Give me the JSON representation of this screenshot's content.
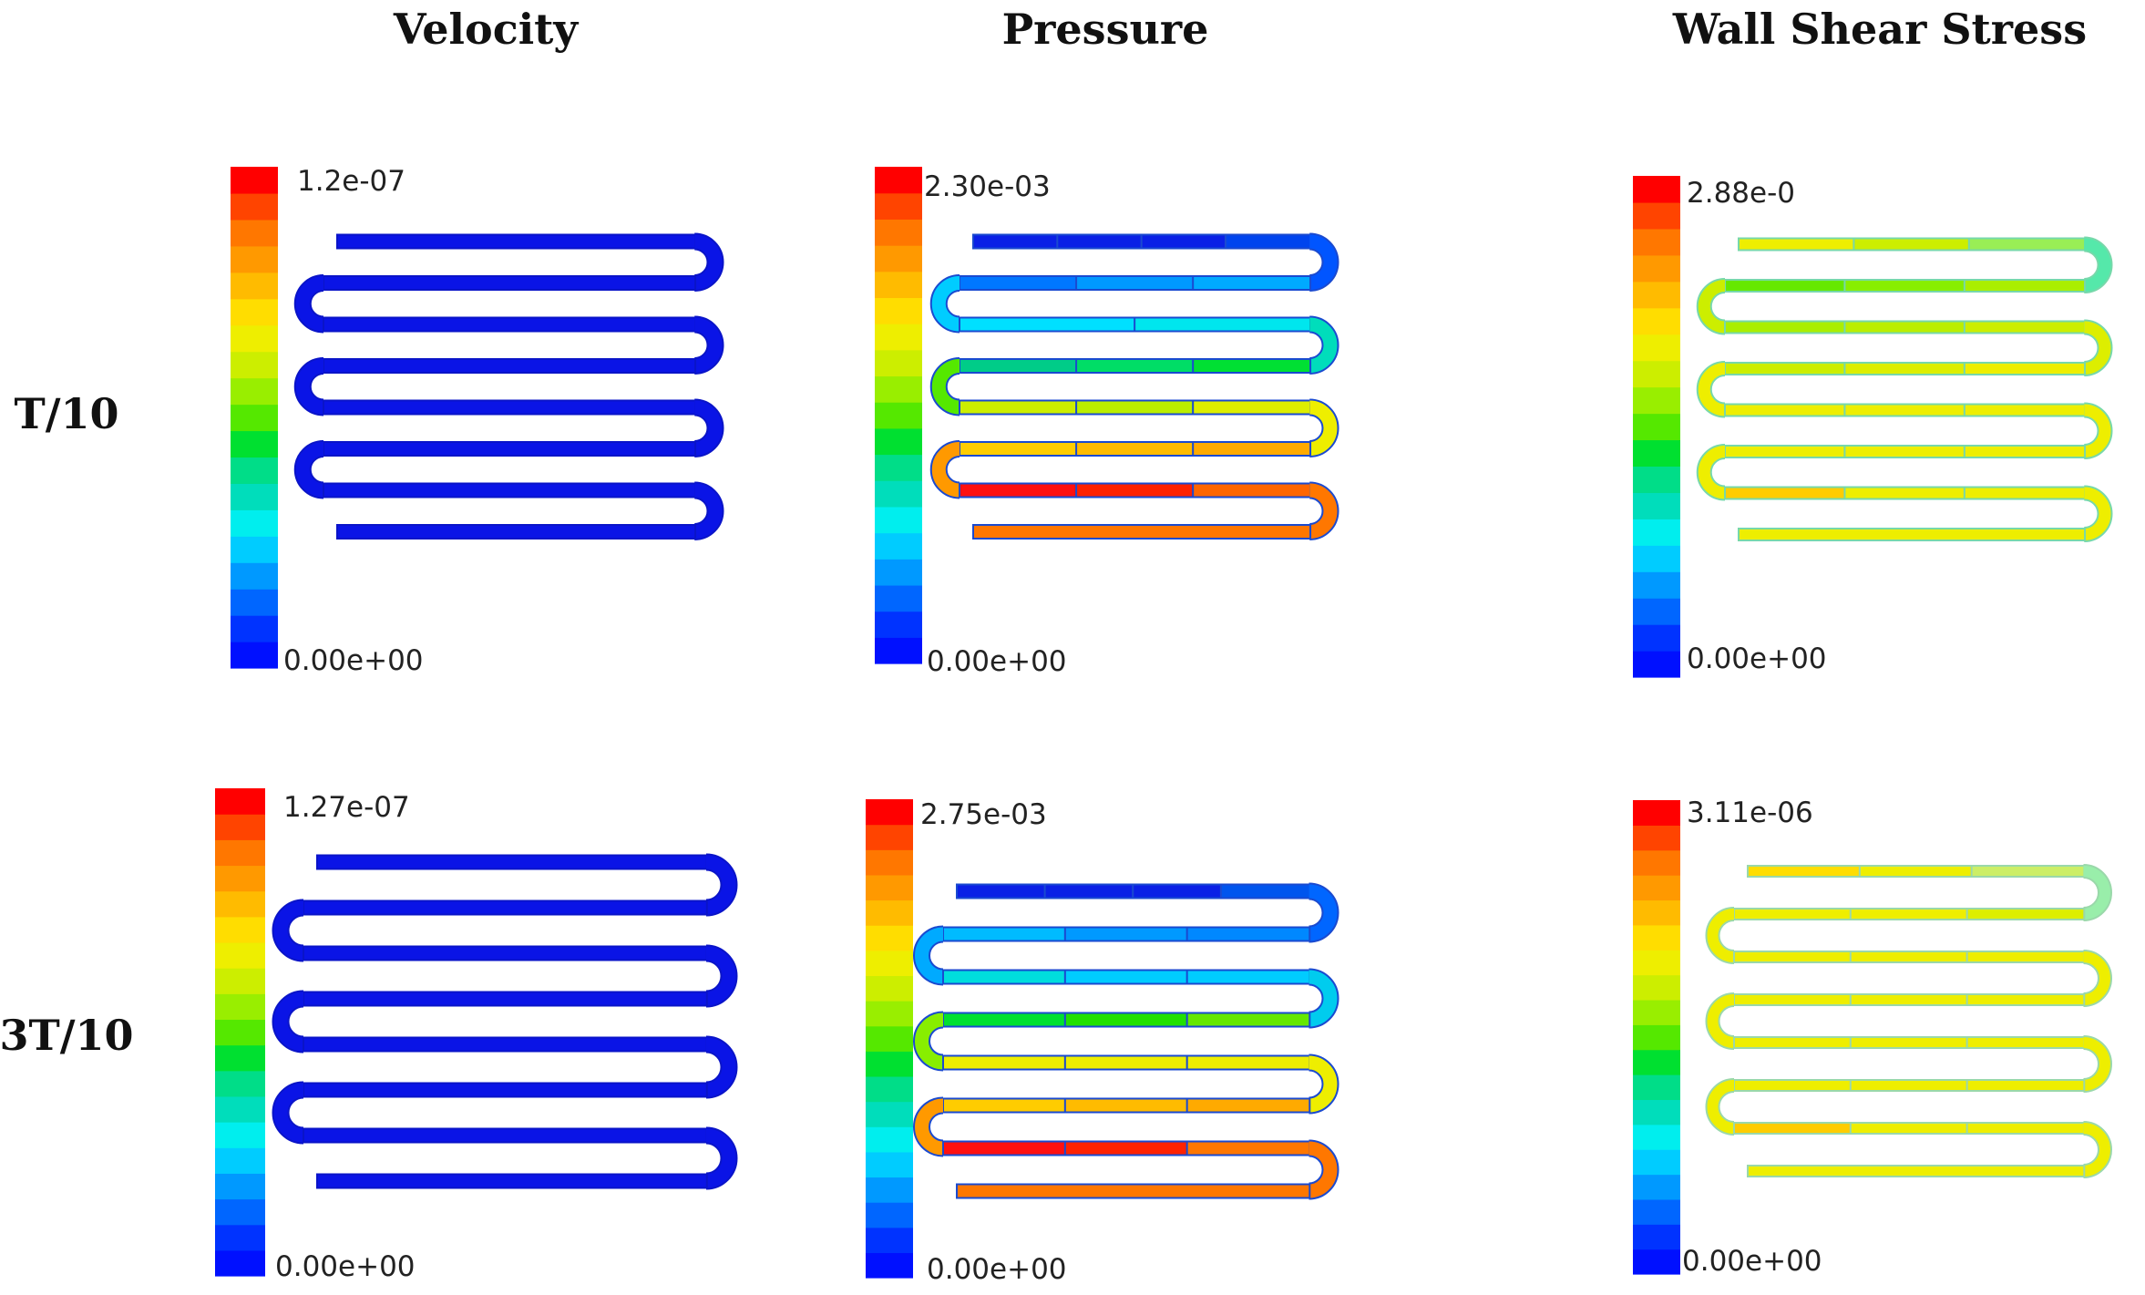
{
  "columns": [
    "Velocity",
    "Pressure",
    "Wall Shear Stress"
  ],
  "rows": [
    "T/10",
    "3T/10"
  ],
  "colormap": [
    "#0010ff",
    "#0033ff",
    "#0066ff",
    "#0099ff",
    "#00ccff",
    "#00eeee",
    "#00ddbb",
    "#00dd88",
    "#00e030",
    "#55e800",
    "#99ee00",
    "#ccee00",
    "#eeee00",
    "#ffdd00",
    "#ffbb00",
    "#ff9900",
    "#ff7700",
    "#ff4400",
    "#ff0000"
  ],
  "panels": [
    {
      "row": 0,
      "col": 0,
      "field": "velocity",
      "max_label": "1.2e-07",
      "min_label": "0.00e+00",
      "segment_colors": [
        [
          "#0a14e6"
        ],
        [
          "#0a14e6"
        ],
        [
          "#0a14e6"
        ],
        [
          "#0a14e6"
        ],
        [
          "#0a14e6"
        ],
        [
          "#0a14e6"
        ],
        [
          "#0a14e6"
        ],
        [
          "#0a14e6"
        ],
        [
          "#0a14e6"
        ],
        [
          "#0a14e6"
        ],
        [
          "#0a14e6"
        ],
        [
          "#0a14e6"
        ],
        [
          "#0a14e6"
        ],
        [
          "#0a14e6"
        ],
        [
          "#0a14e6"
        ]
      ]
    },
    {
      "row": 0,
      "col": 1,
      "field": "pressure",
      "max_label": "2.30e-03",
      "min_label": "0.00e+00",
      "segment_colors": [
        [
          "#0a20e6",
          "#0a20e6",
          "#0a20e6",
          "#0044ee"
        ],
        [
          "#0055ff"
        ],
        [
          "#0077ff",
          "#0099ff",
          "#00aaff"
        ],
        [
          "#00ccff"
        ],
        [
          "#00e0ff",
          "#00e6ee"
        ],
        [
          "#00ddbb"
        ],
        [
          "#00cc88",
          "#00dd66",
          "#00e033"
        ],
        [
          "#55e800"
        ],
        [
          "#ccee00",
          "#bbee00",
          "#ddee00"
        ],
        [
          "#eeee00"
        ],
        [
          "#ffcc00",
          "#ffbb00",
          "#ffaa00"
        ],
        [
          "#ff9900"
        ],
        [
          "#ff1010",
          "#ff2200",
          "#ff6600"
        ],
        [
          "#ff7700"
        ],
        [
          "#ff7700"
        ]
      ]
    },
    {
      "row": 0,
      "col": 2,
      "field": "wall_shear_stress",
      "max_label": "2.88e-0",
      "min_label": "0.00e+00",
      "segment_colors": [
        [
          "#eeee00",
          "#ccee00",
          "#99ee55"
        ],
        [
          "#55e8aa"
        ],
        [
          "#66e800",
          "#88ee00",
          "#aaee00"
        ],
        [
          "#ccee00"
        ],
        [
          "#aaee00",
          "#bbee00",
          "#ccee00"
        ],
        [
          "#ddee00"
        ],
        [
          "#ccee00",
          "#ddee00",
          "#eeee00"
        ],
        [
          "#eeee00"
        ],
        [
          "#eeee00",
          "#eeee00",
          "#eeee00"
        ],
        [
          "#eeee00"
        ],
        [
          "#eeee00",
          "#eeee00",
          "#eeee00"
        ],
        [
          "#eeee00"
        ],
        [
          "#ffcc00",
          "#eeee00",
          "#eeee00"
        ],
        [
          "#eeee00"
        ],
        [
          "#eeee00"
        ]
      ]
    },
    {
      "row": 1,
      "col": 0,
      "field": "velocity",
      "max_label": "1.27e-07",
      "min_label": "0.00e+00",
      "segment_colors": [
        [
          "#0a14e6"
        ],
        [
          "#0a14e6"
        ],
        [
          "#0a14e6"
        ],
        [
          "#0a14e6"
        ],
        [
          "#0a14e6"
        ],
        [
          "#0a14e6"
        ],
        [
          "#0a14e6"
        ],
        [
          "#0a14e6"
        ],
        [
          "#0a14e6"
        ],
        [
          "#0a14e6"
        ],
        [
          "#0a14e6"
        ],
        [
          "#0a14e6"
        ],
        [
          "#0a14e6"
        ],
        [
          "#0a14e6"
        ],
        [
          "#0a14e6"
        ]
      ]
    },
    {
      "row": 1,
      "col": 1,
      "field": "pressure",
      "max_label": "2.75e-03",
      "min_label": "0.00e+00",
      "segment_colors": [
        [
          "#0a20e6",
          "#0a20e6",
          "#0a20e6",
          "#0055ee"
        ],
        [
          "#0066ff"
        ],
        [
          "#00bbff",
          "#0099ff",
          "#0088ff"
        ],
        [
          "#00aaff"
        ],
        [
          "#00dddd",
          "#00ccff",
          "#00ccff"
        ],
        [
          "#00ccee"
        ],
        [
          "#00e030",
          "#22e000",
          "#66e800"
        ],
        [
          "#88ee00"
        ],
        [
          "#eeee00",
          "#eeee00",
          "#eeee00"
        ],
        [
          "#eeee00"
        ],
        [
          "#ffcc00",
          "#ffbb00",
          "#ffaa00"
        ],
        [
          "#ff9900"
        ],
        [
          "#ff1010",
          "#ff2200",
          "#ff7700"
        ],
        [
          "#ff7700"
        ],
        [
          "#ff7700"
        ]
      ]
    },
    {
      "row": 1,
      "col": 2,
      "field": "wall_shear_stress",
      "max_label": "3.11e-06",
      "min_label": "0.00e+00",
      "segment_colors": [
        [
          "#ffdd00",
          "#eeee00",
          "#ccee66"
        ],
        [
          "#99eeaa"
        ],
        [
          "#eeee00",
          "#eeee00",
          "#ddee00"
        ],
        [
          "#eeee00"
        ],
        [
          "#eeee00",
          "#eeee00",
          "#eeee00"
        ],
        [
          "#eeee00"
        ],
        [
          "#eeee00",
          "#eeee00",
          "#eeee00"
        ],
        [
          "#eeee00"
        ],
        [
          "#eeee00",
          "#eeee00",
          "#eeee00"
        ],
        [
          "#eeee00"
        ],
        [
          "#eeee00",
          "#eeee00",
          "#eeee00"
        ],
        [
          "#eeee00"
        ],
        [
          "#ffcc00",
          "#eeee00",
          "#eeee00"
        ],
        [
          "#eeee00"
        ],
        [
          "#eeee00"
        ]
      ]
    }
  ]
}
